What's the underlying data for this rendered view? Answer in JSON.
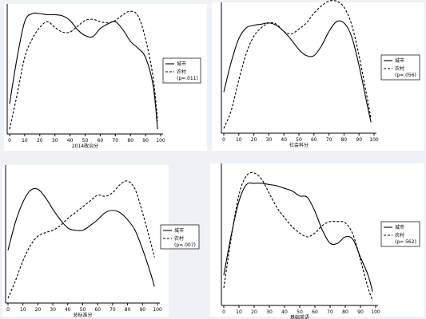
{
  "chart_data": [
    {
      "type": "line",
      "xlabel": "2014政治分",
      "x_ticks": [
        0,
        10,
        20,
        30,
        40,
        50,
        60,
        70,
        80,
        90,
        100
      ],
      "xlim": [
        0,
        100
      ],
      "ylim": [
        0,
        1
      ],
      "legend_placement": "right",
      "legend": [
        "城市",
        "农村",
        "(p=.011)"
      ],
      "series": [
        {
          "name": "城市",
          "style": "solid",
          "x": [
            0,
            5,
            10,
            15,
            20,
            25,
            30,
            35,
            40,
            45,
            50,
            55,
            60,
            65,
            70,
            75,
            80,
            85,
            90,
            95,
            98
          ],
          "y": [
            0.22,
            0.62,
            0.93,
            1.0,
            1.0,
            0.99,
            0.99,
            0.98,
            0.94,
            0.86,
            0.81,
            0.8,
            0.87,
            0.91,
            0.93,
            0.86,
            0.76,
            0.7,
            0.62,
            0.38,
            0.0
          ]
        },
        {
          "name": "农村",
          "style": "dashed",
          "x": [
            0,
            5,
            10,
            15,
            20,
            25,
            30,
            35,
            40,
            45,
            50,
            55,
            60,
            65,
            70,
            75,
            80,
            85,
            90,
            95,
            98
          ],
          "y": [
            0.0,
            0.3,
            0.62,
            0.78,
            0.88,
            0.93,
            0.88,
            0.84,
            0.84,
            0.89,
            0.94,
            0.95,
            0.93,
            0.92,
            0.94,
            0.99,
            1.02,
            0.98,
            0.78,
            0.45,
            0.07
          ]
        }
      ]
    },
    {
      "type": "line",
      "xlabel": "社会科分",
      "x_ticks": [
        0,
        10,
        20,
        30,
        40,
        50,
        60,
        70,
        80,
        90,
        100
      ],
      "xlim": [
        0,
        100
      ],
      "ylim": [
        0,
        1
      ],
      "legend_placement": "right",
      "legend": [
        "城市",
        "农村",
        "(p=.056)"
      ],
      "series": [
        {
          "name": "城市",
          "style": "solid",
          "x": [
            0,
            5,
            10,
            15,
            20,
            25,
            30,
            35,
            40,
            45,
            50,
            55,
            60,
            65,
            70,
            75,
            80,
            85,
            90,
            95,
            98
          ],
          "y": [
            0.3,
            0.55,
            0.74,
            0.83,
            0.85,
            0.86,
            0.87,
            0.85,
            0.8,
            0.73,
            0.65,
            0.6,
            0.6,
            0.68,
            0.8,
            0.88,
            0.87,
            0.76,
            0.52,
            0.22,
            0.05
          ]
        },
        {
          "name": "农村",
          "style": "dashed",
          "x": [
            0,
            5,
            10,
            15,
            20,
            25,
            30,
            35,
            40,
            45,
            50,
            55,
            60,
            65,
            70,
            75,
            80,
            85,
            90,
            95,
            98
          ],
          "y": [
            0.0,
            0.15,
            0.4,
            0.62,
            0.76,
            0.83,
            0.87,
            0.86,
            0.8,
            0.78,
            0.82,
            0.87,
            0.95,
            1.01,
            1.05,
            1.05,
            1.0,
            0.86,
            0.6,
            0.28,
            0.08
          ]
        }
      ]
    },
    {
      "type": "line",
      "xlabel": "总标准分",
      "x_ticks": [
        0,
        10,
        20,
        30,
        40,
        50,
        60,
        70,
        80,
        90,
        100
      ],
      "xlim": [
        0,
        100
      ],
      "ylim": [
        0,
        1
      ],
      "legend_placement": "right",
      "legend": [
        "城市",
        "农村",
        "(p=.007)"
      ],
      "series": [
        {
          "name": "城市",
          "style": "solid",
          "x": [
            0,
            5,
            10,
            15,
            20,
            25,
            30,
            35,
            40,
            45,
            50,
            55,
            60,
            65,
            70,
            75,
            80,
            85,
            90,
            95,
            98
          ],
          "y": [
            0.41,
            0.65,
            0.82,
            0.92,
            0.93,
            0.86,
            0.76,
            0.67,
            0.6,
            0.58,
            0.58,
            0.62,
            0.67,
            0.73,
            0.75,
            0.73,
            0.67,
            0.58,
            0.42,
            0.23,
            0.1
          ]
        },
        {
          "name": "农村",
          "style": "dashed",
          "x": [
            0,
            5,
            10,
            15,
            20,
            25,
            30,
            35,
            40,
            45,
            50,
            55,
            60,
            65,
            70,
            75,
            80,
            85,
            90,
            95,
            98
          ],
          "y": [
            0.0,
            0.15,
            0.32,
            0.45,
            0.53,
            0.56,
            0.58,
            0.62,
            0.68,
            0.73,
            0.78,
            0.83,
            0.88,
            0.87,
            0.9,
            0.97,
            1.0,
            0.93,
            0.73,
            0.5,
            0.35
          ]
        }
      ]
    },
    {
      "type": "line",
      "xlabel": "基础英语",
      "x_ticks": [
        0,
        10,
        20,
        30,
        40,
        50,
        60,
        70,
        80,
        90,
        100
      ],
      "xlim": [
        0,
        100
      ],
      "ylim": [
        0,
        1
      ],
      "legend_placement": "right",
      "legend": [
        "城市",
        "农村",
        "(p=.562)"
      ],
      "series": [
        {
          "name": "城市",
          "style": "solid",
          "x": [
            0,
            5,
            10,
            15,
            20,
            25,
            30,
            35,
            40,
            45,
            50,
            55,
            60,
            65,
            70,
            75,
            80,
            85,
            90,
            95,
            98
          ],
          "y": [
            0.2,
            0.52,
            0.78,
            0.91,
            0.92,
            0.92,
            0.91,
            0.9,
            0.88,
            0.86,
            0.82,
            0.81,
            0.7,
            0.55,
            0.45,
            0.45,
            0.5,
            0.48,
            0.34,
            0.2,
            0.07
          ]
        },
        {
          "name": "农村",
          "style": "dashed",
          "x": [
            0,
            5,
            10,
            15,
            20,
            25,
            30,
            35,
            40,
            45,
            50,
            55,
            60,
            65,
            70,
            75,
            80,
            85,
            90,
            95,
            98
          ],
          "y": [
            0.1,
            0.5,
            0.83,
            0.98,
            1.0,
            0.95,
            0.84,
            0.73,
            0.65,
            0.58,
            0.53,
            0.5,
            0.53,
            0.59,
            0.62,
            0.62,
            0.61,
            0.52,
            0.32,
            0.1,
            0.0
          ]
        }
      ]
    }
  ]
}
